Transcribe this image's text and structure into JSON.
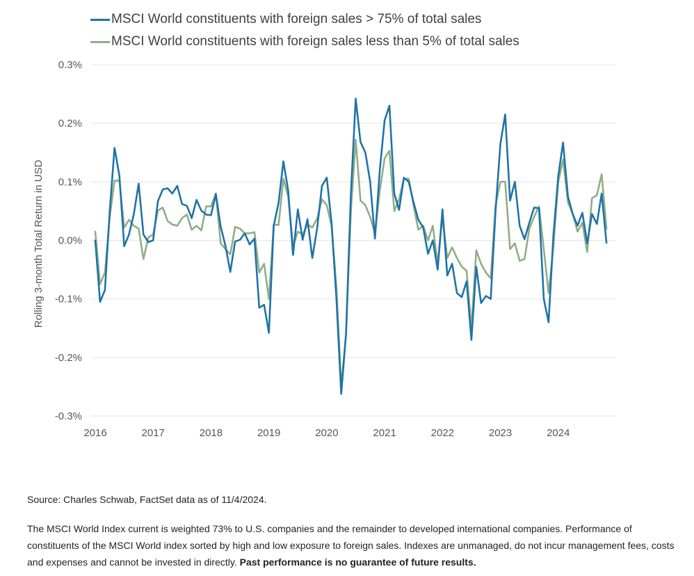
{
  "chart_data": {
    "type": "line",
    "ylabel": "Rolling 3-month Total Return in USD",
    "xlabel": "",
    "y_ticks": [
      "0.3%",
      "0.2%",
      "0.1%",
      "0.0%",
      "-0.1%",
      "-0.2%",
      "-0.3%"
    ],
    "x_ticks": [
      "2016",
      "2017",
      "2018",
      "2019",
      "2020",
      "2021",
      "2022",
      "2023",
      "2024"
    ],
    "ylim": [
      -0.3,
      0.3
    ],
    "xlim": [
      2016.0,
      2025.0
    ],
    "grid": "horizontal",
    "legend_position": "top-left",
    "x_unit": "decimal year, monthly",
    "series": [
      {
        "name": "MSCI World constituents with foreign sales > 75% of total sales",
        "color": "#1f73a8",
        "x": [
          2016.0,
          2016.083,
          2016.167,
          2016.25,
          2016.333,
          2016.417,
          2016.5,
          2016.583,
          2016.667,
          2016.75,
          2016.833,
          2016.917,
          2017.0,
          2017.083,
          2017.167,
          2017.25,
          2017.333,
          2017.417,
          2017.5,
          2017.583,
          2017.667,
          2017.75,
          2017.833,
          2017.917,
          2018.0,
          2018.083,
          2018.167,
          2018.25,
          2018.333,
          2018.417,
          2018.5,
          2018.583,
          2018.667,
          2018.75,
          2018.833,
          2018.917,
          2019.0,
          2019.083,
          2019.167,
          2019.25,
          2019.333,
          2019.417,
          2019.5,
          2019.583,
          2019.667,
          2019.75,
          2019.833,
          2019.917,
          2020.0,
          2020.083,
          2020.167,
          2020.25,
          2020.333,
          2020.417,
          2020.5,
          2020.583,
          2020.667,
          2020.75,
          2020.833,
          2020.917,
          2021.0,
          2021.083,
          2021.167,
          2021.25,
          2021.333,
          2021.417,
          2021.5,
          2021.583,
          2021.667,
          2021.75,
          2021.833,
          2021.917,
          2022.0,
          2022.083,
          2022.167,
          2022.25,
          2022.333,
          2022.417,
          2022.5,
          2022.583,
          2022.667,
          2022.75,
          2022.833,
          2022.917,
          2023.0,
          2023.083,
          2023.167,
          2023.25,
          2023.333,
          2023.417,
          2023.5,
          2023.583,
          2023.667,
          2023.75,
          2023.833,
          2023.917,
          2024.0,
          2024.083,
          2024.167,
          2024.25,
          2024.333,
          2024.417,
          2024.5,
          2024.583,
          2024.667,
          2024.75,
          2024.833
        ],
        "values": [
          0.0,
          -0.105,
          -0.085,
          0.05,
          0.158,
          0.11,
          -0.01,
          0.01,
          0.045,
          0.097,
          0.01,
          -0.003,
          0.0,
          0.067,
          0.087,
          0.089,
          0.08,
          0.093,
          0.062,
          0.059,
          0.038,
          0.069,
          0.051,
          0.044,
          0.043,
          0.079,
          0.024,
          -0.01,
          -0.054,
          -0.002,
          0.001,
          0.012,
          -0.007,
          0.003,
          -0.115,
          -0.11,
          -0.158,
          0.025,
          0.064,
          0.135,
          0.085,
          -0.025,
          0.053,
          0.001,
          0.036,
          -0.03,
          0.02,
          0.093,
          0.107,
          0.03,
          -0.1,
          -0.262,
          -0.16,
          0.08,
          0.242,
          0.168,
          0.15,
          0.1,
          0.003,
          0.12,
          0.205,
          0.23,
          0.08,
          0.052,
          0.107,
          0.1,
          0.065,
          0.035,
          0.022,
          -0.023,
          0.0,
          -0.05,
          0.053,
          -0.06,
          -0.04,
          -0.09,
          -0.097,
          -0.07,
          -0.17,
          -0.045,
          -0.107,
          -0.095,
          -0.1,
          0.05,
          0.165,
          0.215,
          0.068,
          0.1,
          0.025,
          0.002,
          0.03,
          0.056,
          0.055,
          -0.1,
          -0.14,
          0.01,
          0.11,
          0.167,
          0.075,
          0.045,
          0.025,
          0.047,
          -0.005,
          0.045,
          0.028,
          0.08,
          -0.004
        ]
      },
      {
        "name": "MSCI World constituents with foreign sales less than 5% of total sales",
        "color": "#8fae86",
        "x": [
          2016.0,
          2016.083,
          2016.167,
          2016.25,
          2016.333,
          2016.417,
          2016.5,
          2016.583,
          2016.667,
          2016.75,
          2016.833,
          2016.917,
          2017.0,
          2017.083,
          2017.167,
          2017.25,
          2017.333,
          2017.417,
          2017.5,
          2017.583,
          2017.667,
          2017.75,
          2017.833,
          2017.917,
          2018.0,
          2018.083,
          2018.167,
          2018.25,
          2018.333,
          2018.417,
          2018.5,
          2018.583,
          2018.667,
          2018.75,
          2018.833,
          2018.917,
          2019.0,
          2019.083,
          2019.167,
          2019.25,
          2019.333,
          2019.417,
          2019.5,
          2019.583,
          2019.667,
          2019.75,
          2019.833,
          2019.917,
          2020.0,
          2020.083,
          2020.167,
          2020.25,
          2020.333,
          2020.417,
          2020.5,
          2020.583,
          2020.667,
          2020.75,
          2020.833,
          2020.917,
          2021.0,
          2021.083,
          2021.167,
          2021.25,
          2021.333,
          2021.417,
          2021.5,
          2021.583,
          2021.667,
          2021.75,
          2021.833,
          2021.917,
          2022.0,
          2022.083,
          2022.167,
          2022.25,
          2022.333,
          2022.417,
          2022.5,
          2022.583,
          2022.667,
          2022.75,
          2022.833,
          2022.917,
          2023.0,
          2023.083,
          2023.167,
          2023.25,
          2023.333,
          2023.417,
          2023.5,
          2023.583,
          2023.667,
          2023.75,
          2023.833,
          2023.917,
          2024.0,
          2024.083,
          2024.167,
          2024.25,
          2024.333,
          2024.417,
          2024.5,
          2024.583,
          2024.667,
          2024.75,
          2024.833
        ],
        "values": [
          0.015,
          -0.075,
          -0.055,
          0.04,
          0.102,
          0.102,
          0.022,
          0.035,
          0.025,
          0.02,
          -0.032,
          0.005,
          0.01,
          0.051,
          0.056,
          0.033,
          0.027,
          0.025,
          0.038,
          0.044,
          0.018,
          0.025,
          0.017,
          0.058,
          0.058,
          0.08,
          -0.005,
          -0.015,
          -0.024,
          0.023,
          0.02,
          0.012,
          0.012,
          0.014,
          -0.055,
          -0.04,
          -0.1,
          0.027,
          0.026,
          0.105,
          0.075,
          -0.01,
          0.015,
          0.01,
          0.027,
          0.022,
          0.037,
          0.07,
          0.06,
          0.025,
          -0.08,
          -0.25,
          -0.16,
          0.05,
          0.172,
          0.068,
          0.06,
          0.04,
          0.012,
          0.085,
          0.14,
          0.153,
          0.05,
          0.07,
          0.105,
          0.105,
          0.06,
          0.018,
          0.025,
          0.0,
          0.025,
          -0.04,
          0.04,
          -0.03,
          -0.012,
          -0.03,
          -0.045,
          -0.052,
          -0.15,
          -0.017,
          -0.04,
          -0.055,
          -0.065,
          0.06,
          0.1,
          0.1,
          -0.015,
          -0.005,
          -0.035,
          -0.032,
          0.02,
          0.04,
          0.058,
          -0.015,
          -0.09,
          -0.01,
          0.1,
          0.138,
          0.065,
          0.045,
          0.015,
          0.03,
          -0.02,
          0.072,
          0.077,
          0.113,
          0.02
        ]
      }
    ]
  },
  "footer": {
    "source": "Source: Charles Schwab, FactSet data as of 11/4/2024.",
    "note": "The MSCI World Index current is weighted 73% to U.S. companies and the remainder to developed international companies. Performance of constituents of the MSCI World index sorted by high and low exposure to foreign sales. Indexes are unmanaged, do not incur management fees, costs and expenses and cannot be invested in directly.",
    "disclaimer": "Past performance is no guarantee of future results."
  }
}
